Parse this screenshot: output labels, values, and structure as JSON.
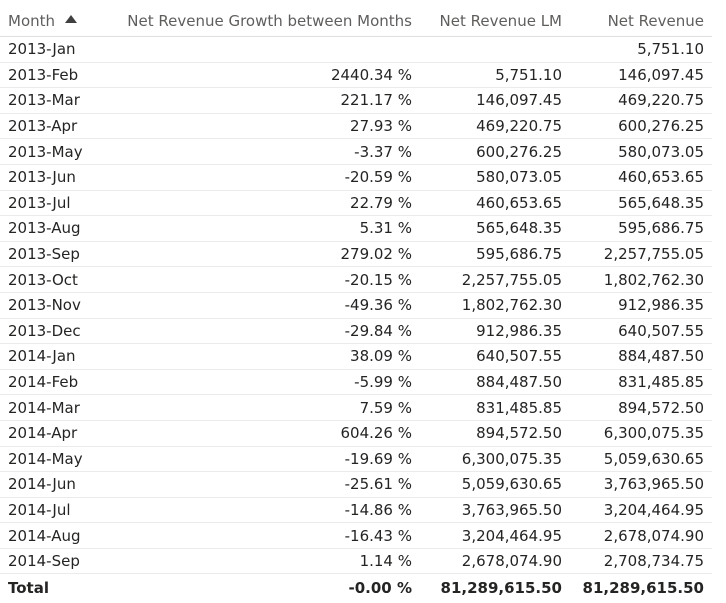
{
  "columns": {
    "month": "Month",
    "growth": "Net Revenue Growth between Months",
    "lm": "Net Revenue LM",
    "revenue": "Net Revenue"
  },
  "rows": [
    {
      "month": "2013-Jan",
      "growth": "",
      "lm": "",
      "revenue": "5,751.10"
    },
    {
      "month": "2013-Feb",
      "growth": "2440.34 %",
      "lm": "5,751.10",
      "revenue": "146,097.45"
    },
    {
      "month": "2013-Mar",
      "growth": "221.17 %",
      "lm": "146,097.45",
      "revenue": "469,220.75"
    },
    {
      "month": "2013-Apr",
      "growth": "27.93 %",
      "lm": "469,220.75",
      "revenue": "600,276.25"
    },
    {
      "month": "2013-May",
      "growth": "-3.37 %",
      "lm": "600,276.25",
      "revenue": "580,073.05"
    },
    {
      "month": "2013-Jun",
      "growth": "-20.59 %",
      "lm": "580,073.05",
      "revenue": "460,653.65"
    },
    {
      "month": "2013-Jul",
      "growth": "22.79 %",
      "lm": "460,653.65",
      "revenue": "565,648.35"
    },
    {
      "month": "2013-Aug",
      "growth": "5.31 %",
      "lm": "565,648.35",
      "revenue": "595,686.75"
    },
    {
      "month": "2013-Sep",
      "growth": "279.02 %",
      "lm": "595,686.75",
      "revenue": "2,257,755.05"
    },
    {
      "month": "2013-Oct",
      "growth": "-20.15 %",
      "lm": "2,257,755.05",
      "revenue": "1,802,762.30"
    },
    {
      "month": "2013-Nov",
      "growth": "-49.36 %",
      "lm": "1,802,762.30",
      "revenue": "912,986.35"
    },
    {
      "month": "2013-Dec",
      "growth": "-29.84 %",
      "lm": "912,986.35",
      "revenue": "640,507.55"
    },
    {
      "month": "2014-Jan",
      "growth": "38.09 %",
      "lm": "640,507.55",
      "revenue": "884,487.50"
    },
    {
      "month": "2014-Feb",
      "growth": "-5.99 %",
      "lm": "884,487.50",
      "revenue": "831,485.85"
    },
    {
      "month": "2014-Mar",
      "growth": "7.59 %",
      "lm": "831,485.85",
      "revenue": "894,572.50"
    },
    {
      "month": "2014-Apr",
      "growth": "604.26 %",
      "lm": "894,572.50",
      "revenue": "6,300,075.35"
    },
    {
      "month": "2014-May",
      "growth": "-19.69 %",
      "lm": "6,300,075.35",
      "revenue": "5,059,630.65"
    },
    {
      "month": "2014-Jun",
      "growth": "-25.61 %",
      "lm": "5,059,630.65",
      "revenue": "3,763,965.50"
    },
    {
      "month": "2014-Jul",
      "growth": "-14.86 %",
      "lm": "3,763,965.50",
      "revenue": "3,204,464.95"
    },
    {
      "month": "2014-Aug",
      "growth": "-16.43 %",
      "lm": "3,204,464.95",
      "revenue": "2,678,074.90"
    },
    {
      "month": "2014-Sep",
      "growth": "1.14 %",
      "lm": "2,678,074.90",
      "revenue": "2,708,734.75"
    }
  ],
  "total": {
    "label": "Total",
    "growth": "-0.00 %",
    "lm": "81,289,615.50",
    "revenue": "81,289,615.50"
  },
  "sort": {
    "column": "month",
    "direction": "ascending",
    "icon": "sort-ascending-icon"
  }
}
